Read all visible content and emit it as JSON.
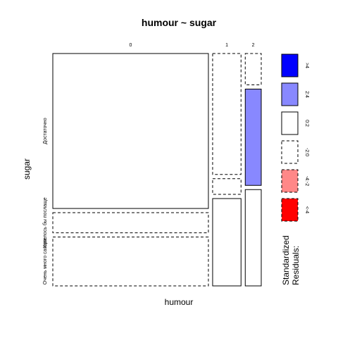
{
  "chart_data": {
    "type": "mosaic",
    "title": "humour ~ sugar",
    "xlabel": "humour",
    "ylabel": "sugar",
    "x_categories": [
      "0",
      "1",
      "2"
    ],
    "y_categories": [
      "Достаточно",
      "Хотелось бы послаще",
      "Очень много сахара"
    ],
    "x_proportions": [
      0.778,
      0.142,
      0.08
    ],
    "cells": [
      {
        "x": "0",
        "y": "Достаточно",
        "proportion": 0.692,
        "residual_class": "0:2"
      },
      {
        "x": "0",
        "y": "Хотелось бы послаще",
        "proportion": 0.09,
        "residual_class": "-2:0"
      },
      {
        "x": "0",
        "y": "Очень много сахара",
        "proportion": 0.218,
        "residual_class": "-2:0"
      },
      {
        "x": "1",
        "y": "Достаточно",
        "proportion": 0.54,
        "residual_class": "-2:0"
      },
      {
        "x": "1",
        "y": "Хотелось бы послаще",
        "proportion": 0.07,
        "residual_class": "-2:0"
      },
      {
        "x": "1",
        "y": "Очень много сахара",
        "proportion": 0.39,
        "residual_class": "0:2"
      },
      {
        "x": "2",
        "y": "Достаточно",
        "proportion": 0.14,
        "residual_class": "-2:0"
      },
      {
        "x": "2",
        "y": "Хотелось бы послаще",
        "proportion": 0.43,
        "residual_class": "2:4"
      },
      {
        "x": "2",
        "y": "Очень много сахара",
        "proportion": 0.43,
        "residual_class": "0:2"
      }
    ],
    "legend": {
      "title_line1": "Standardized",
      "title_line2": "Residuals:",
      "entries": [
        {
          "label": ">4",
          "color": "#0000ff",
          "dashed": false
        },
        {
          "label": "2:4",
          "color": "#8888ff",
          "dashed": false
        },
        {
          "label": "0:2",
          "color": "#ffffff",
          "dashed": false
        },
        {
          "label": "-2:0",
          "color": "#ffffff",
          "dashed": true
        },
        {
          "label": "-4:-2",
          "color": "#ff8888",
          "dashed": true
        },
        {
          "label": "<-4",
          "color": "#ff0000",
          "dashed": true
        }
      ]
    }
  }
}
